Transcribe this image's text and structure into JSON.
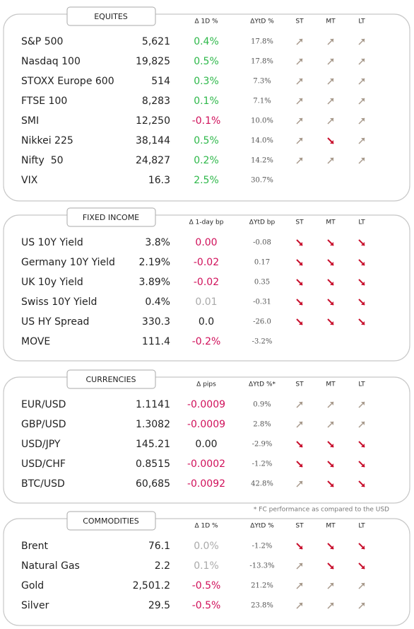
{
  "sections": [
    {
      "title": "EQUITES",
      "headers": [
        "Δ 1D %",
        "ΔYtD %",
        "ST",
        "MT",
        "LT"
      ],
      "rows": [
        {
          "name": "S&P 500",
          "value": "5,621",
          "change": "0.4%",
          "change_color": "green",
          "ytd": "17.8%",
          "trend": [
            "up",
            "up",
            "up"
          ]
        },
        {
          "name": "Nasdaq 100",
          "value": "19,825",
          "change": "0.5%",
          "change_color": "green",
          "ytd": "17.8%",
          "trend": [
            "up",
            "up",
            "up"
          ]
        },
        {
          "name": "STOXX Europe 600",
          "value": "514",
          "change": "0.3%",
          "change_color": "green",
          "ytd": "7.3%",
          "trend": [
            "up",
            "up",
            "up"
          ]
        },
        {
          "name": "FTSE 100",
          "value": "8,283",
          "change": "0.1%",
          "change_color": "green",
          "ytd": "7.1%",
          "trend": [
            "up",
            "up",
            "up"
          ]
        },
        {
          "name": "SMI",
          "value": "12,250",
          "change": "-0.1%",
          "change_color": "red",
          "ytd": "10.0%",
          "trend": [
            "up",
            "up",
            "up"
          ]
        },
        {
          "name": "Nikkei 225",
          "value": "38,144",
          "change": "0.5%",
          "change_color": "green",
          "ytd": "14.0%",
          "trend": [
            "up",
            "down",
            "up"
          ]
        },
        {
          "name": "Nifty  50",
          "value": "24,827",
          "change": "0.2%",
          "change_color": "green",
          "ytd": "14.2%",
          "trend": [
            "up",
            "up",
            "up"
          ]
        },
        {
          "name": "VIX",
          "value": "16.3",
          "change": "2.5%",
          "change_color": "green",
          "ytd": "30.7%",
          "trend": []
        }
      ]
    },
    {
      "title": "FIXED INCOME",
      "headers": [
        "Δ 1-day bp",
        "ΔYtD bp",
        "ST",
        "MT",
        "LT"
      ],
      "rows": [
        {
          "name": "US 10Y Yield",
          "value": "3.8%",
          "change": "0.00",
          "change_color": "red",
          "ytd": "-0.08",
          "trend": [
            "down",
            "down",
            "down"
          ]
        },
        {
          "name": "Germany 10Y Yield",
          "value": "2.19%",
          "change": "-0.02",
          "change_color": "red",
          "ytd": "0.17",
          "trend": [
            "down",
            "down",
            "down"
          ]
        },
        {
          "name": "UK 10y Yield",
          "value": "3.89%",
          "change": "-0.02",
          "change_color": "red",
          "ytd": "0.35",
          "trend": [
            "down",
            "down",
            "down"
          ]
        },
        {
          "name": "Swiss 10Y Yield",
          "value": "0.4%",
          "change": "0.01",
          "change_color": "grey",
          "ytd": "-0.31",
          "trend": [
            "down",
            "down",
            "down"
          ]
        },
        {
          "name": "US HY Spread",
          "value": "330.3",
          "change": "0.0",
          "change_color": "black",
          "ytd": "-26.0",
          "trend": [
            "down",
            "down",
            "down"
          ]
        },
        {
          "name": "MOVE",
          "value": "111.4",
          "change": "-0.2%",
          "change_color": "red",
          "ytd": "-3.2%",
          "trend": []
        }
      ]
    },
    {
      "title": "CURRENCIES",
      "headers": [
        "Δ pips",
        "ΔYtD %*",
        "ST",
        "MT",
        "LT"
      ],
      "rows": [
        {
          "name": "EUR/USD",
          "value": "1.1141",
          "change": "-0.0009",
          "change_color": "red",
          "ytd": "0.9%",
          "trend": [
            "up",
            "up",
            "up"
          ]
        },
        {
          "name": "GBP/USD",
          "value": "1.3082",
          "change": "-0.0009",
          "change_color": "red",
          "ytd": "2.8%",
          "trend": [
            "up",
            "up",
            "up"
          ]
        },
        {
          "name": "USD/JPY",
          "value": "145.21",
          "change": "0.00",
          "change_color": "black",
          "ytd": "-2.9%",
          "trend": [
            "down",
            "down",
            "down"
          ]
        },
        {
          "name": "USD/CHF",
          "value": "0.8515",
          "change": "-0.0002",
          "change_color": "red",
          "ytd": "-1.2%",
          "trend": [
            "down",
            "down",
            "down"
          ]
        },
        {
          "name": "BTC/USD",
          "value": "60,685",
          "change": "-0.0092",
          "change_color": "red",
          "ytd": "42.8%",
          "trend": [
            "up",
            "down",
            "down"
          ]
        }
      ]
    },
    {
      "title": "COMMODITIES",
      "headers": [
        "Δ 1D %",
        "ΔYtD %",
        "ST",
        "MT",
        "LT"
      ],
      "rows": [
        {
          "name": "Brent",
          "value": "76.1",
          "change": "0.0%",
          "change_color": "grey",
          "ytd": "-1.2%",
          "trend": [
            "down",
            "down",
            "down"
          ]
        },
        {
          "name": "Natural Gas",
          "value": "2.2",
          "change": "0.1%",
          "change_color": "grey",
          "ytd": "-13.3%",
          "trend": [
            "up",
            "down",
            "down"
          ]
        },
        {
          "name": "Gold",
          "value": "2,501.2",
          "change": "-0.5%",
          "change_color": "red",
          "ytd": "21.2%",
          "trend": [
            "up",
            "up",
            "up"
          ]
        },
        {
          "name": "Silver",
          "value": "29.5",
          "change": "-0.5%",
          "change_color": "red",
          "ytd": "23.8%",
          "trend": [
            "up",
            "up",
            "up"
          ]
        }
      ]
    }
  ],
  "footnote": "* FC performance as compared to the USD"
}
